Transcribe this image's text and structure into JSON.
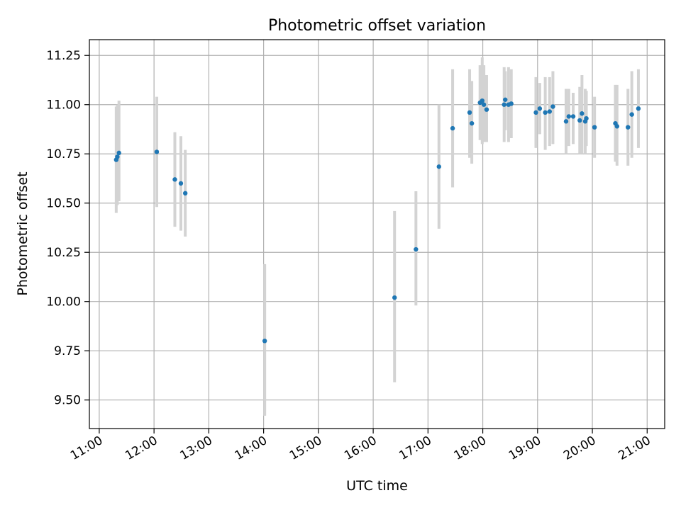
{
  "chart_data": {
    "type": "scatter",
    "title": "Photometric offset variation",
    "xlabel": "UTC time",
    "ylabel": "Photometric offset",
    "xlim": [
      10.82,
      21.32
    ],
    "ylim": [
      9.355,
      11.33
    ],
    "grid": true,
    "x_ticks": [
      {
        "value": 11,
        "label": "11:00"
      },
      {
        "value": 12,
        "label": "12:00"
      },
      {
        "value": 13,
        "label": "13:00"
      },
      {
        "value": 14,
        "label": "14:00"
      },
      {
        "value": 15,
        "label": "15:00"
      },
      {
        "value": 16,
        "label": "16:00"
      },
      {
        "value": 17,
        "label": "17:00"
      },
      {
        "value": 18,
        "label": "18:00"
      },
      {
        "value": 19,
        "label": "19:00"
      },
      {
        "value": 20,
        "label": "20:00"
      },
      {
        "value": 21,
        "label": "21:00"
      }
    ],
    "y_ticks": [
      {
        "value": 9.5,
        "label": "9.50"
      },
      {
        "value": 9.75,
        "label": "9.75"
      },
      {
        "value": 10.0,
        "label": "10.00"
      },
      {
        "value": 10.25,
        "label": "10.25"
      },
      {
        "value": 10.5,
        "label": "10.50"
      },
      {
        "value": 10.75,
        "label": "10.75"
      },
      {
        "value": 11.0,
        "label": "11.00"
      },
      {
        "value": 11.25,
        "label": "11.25"
      }
    ],
    "marker_color": "#1f77b4",
    "errorbar_color": "#d3d3d3",
    "points": [
      {
        "t": 11.31,
        "y": 10.72,
        "lo": 10.45,
        "hi": 10.99
      },
      {
        "t": 11.33,
        "y": 10.735,
        "lo": 10.49,
        "hi": 11.0
      },
      {
        "t": 11.36,
        "y": 10.755,
        "lo": 10.51,
        "hi": 11.02
      },
      {
        "t": 12.05,
        "y": 10.76,
        "lo": 10.48,
        "hi": 11.04
      },
      {
        "t": 12.38,
        "y": 10.62,
        "lo": 10.38,
        "hi": 10.86
      },
      {
        "t": 12.49,
        "y": 10.6,
        "lo": 10.36,
        "hi": 10.84
      },
      {
        "t": 12.57,
        "y": 10.55,
        "lo": 10.33,
        "hi": 10.77
      },
      {
        "t": 14.02,
        "y": 9.8,
        "lo": 9.42,
        "hi": 10.19
      },
      {
        "t": 16.39,
        "y": 10.02,
        "lo": 9.59,
        "hi": 10.46
      },
      {
        "t": 16.78,
        "y": 10.265,
        "lo": 9.98,
        "hi": 10.56
      },
      {
        "t": 17.2,
        "y": 10.685,
        "lo": 10.37,
        "hi": 11.0
      },
      {
        "t": 17.45,
        "y": 10.88,
        "lo": 10.58,
        "hi": 11.18
      },
      {
        "t": 17.76,
        "y": 10.96,
        "lo": 10.73,
        "hi": 11.18
      },
      {
        "t": 17.8,
        "y": 10.905,
        "lo": 10.7,
        "hi": 11.12
      },
      {
        "t": 17.95,
        "y": 11.01,
        "lo": 10.82,
        "hi": 11.2
      },
      {
        "t": 17.99,
        "y": 11.02,
        "lo": 10.8,
        "hi": 11.24
      },
      {
        "t": 18.02,
        "y": 11.0,
        "lo": 10.81,
        "hi": 11.2
      },
      {
        "t": 18.07,
        "y": 10.975,
        "lo": 10.81,
        "hi": 11.15
      },
      {
        "t": 18.39,
        "y": 11.0,
        "lo": 10.81,
        "hi": 11.19
      },
      {
        "t": 18.41,
        "y": 11.025,
        "lo": 10.87,
        "hi": 11.17
      },
      {
        "t": 18.47,
        "y": 11.0,
        "lo": 10.81,
        "hi": 11.19
      },
      {
        "t": 18.52,
        "y": 11.005,
        "lo": 10.83,
        "hi": 11.18
      },
      {
        "t": 18.97,
        "y": 10.96,
        "lo": 10.78,
        "hi": 11.14
      },
      {
        "t": 19.04,
        "y": 10.98,
        "lo": 10.85,
        "hi": 11.11
      },
      {
        "t": 19.14,
        "y": 10.96,
        "lo": 10.77,
        "hi": 11.14
      },
      {
        "t": 19.22,
        "y": 10.965,
        "lo": 10.79,
        "hi": 11.14
      },
      {
        "t": 19.28,
        "y": 10.99,
        "lo": 10.8,
        "hi": 11.17
      },
      {
        "t": 19.52,
        "y": 10.915,
        "lo": 10.75,
        "hi": 11.08
      },
      {
        "t": 19.57,
        "y": 10.94,
        "lo": 10.79,
        "hi": 11.08
      },
      {
        "t": 19.65,
        "y": 10.94,
        "lo": 10.8,
        "hi": 11.06
      },
      {
        "t": 19.77,
        "y": 10.92,
        "lo": 10.75,
        "hi": 11.09
      },
      {
        "t": 19.81,
        "y": 10.955,
        "lo": 10.75,
        "hi": 11.15
      },
      {
        "t": 19.87,
        "y": 10.915,
        "lo": 10.75,
        "hi": 11.08
      },
      {
        "t": 19.89,
        "y": 10.93,
        "lo": 10.79,
        "hi": 11.07
      },
      {
        "t": 20.04,
        "y": 10.885,
        "lo": 10.73,
        "hi": 11.04
      },
      {
        "t": 20.42,
        "y": 10.905,
        "lo": 10.71,
        "hi": 11.1
      },
      {
        "t": 20.45,
        "y": 10.89,
        "lo": 10.69,
        "hi": 11.1
      },
      {
        "t": 20.65,
        "y": 10.885,
        "lo": 10.69,
        "hi": 11.08
      },
      {
        "t": 20.72,
        "y": 10.95,
        "lo": 10.73,
        "hi": 11.17
      },
      {
        "t": 20.84,
        "y": 10.98,
        "lo": 10.78,
        "hi": 11.18
      }
    ]
  }
}
